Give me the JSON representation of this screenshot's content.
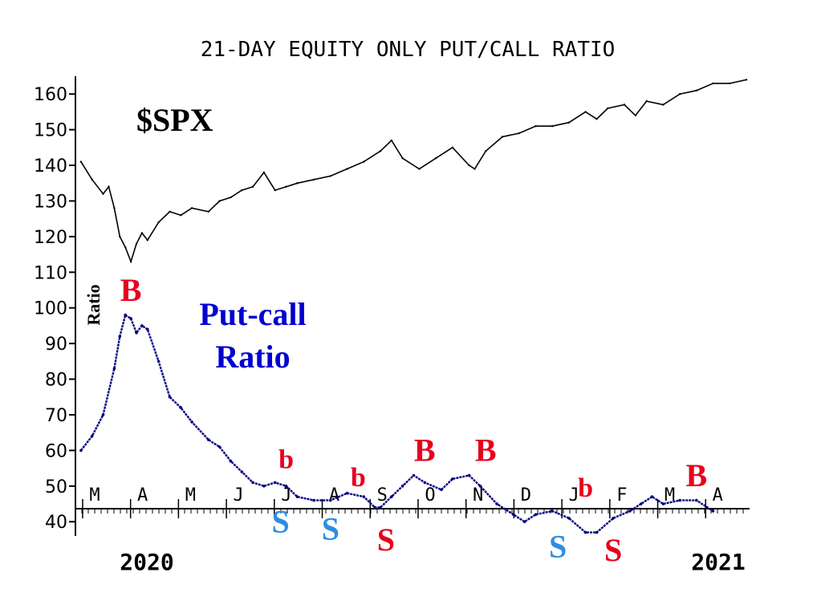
{
  "chart_data": {
    "type": "line",
    "title": "21-DAY EQUITY ONLY PUT/CALL RATIO",
    "y_ticks": [
      40,
      50,
      60,
      70,
      80,
      90,
      100,
      110,
      120,
      130,
      140,
      150,
      160
    ],
    "ylim": [
      36,
      165
    ],
    "ylabel": "Ratio",
    "x_months": [
      "M",
      "A",
      "M",
      "J",
      "J",
      "A",
      "S",
      "O",
      "N",
      "D",
      "J",
      "F",
      "M",
      "A"
    ],
    "x_range": [
      2020.12,
      2021.33
    ],
    "year_labels": [
      "2020",
      "2021"
    ],
    "series": [
      {
        "name": "$SPX",
        "color": "#000000",
        "points": [
          [
            2020.13,
            141
          ],
          [
            2020.15,
            136
          ],
          [
            2020.17,
            132
          ],
          [
            2020.18,
            134
          ],
          [
            2020.19,
            128
          ],
          [
            2020.2,
            120
          ],
          [
            2020.21,
            117
          ],
          [
            2020.22,
            113
          ],
          [
            2020.23,
            118
          ],
          [
            2020.24,
            121
          ],
          [
            2020.25,
            119
          ],
          [
            2020.27,
            124
          ],
          [
            2020.29,
            127
          ],
          [
            2020.31,
            126
          ],
          [
            2020.33,
            128
          ],
          [
            2020.36,
            127
          ],
          [
            2020.38,
            130
          ],
          [
            2020.4,
            131
          ],
          [
            2020.42,
            133
          ],
          [
            2020.44,
            134
          ],
          [
            2020.46,
            138
          ],
          [
            2020.48,
            133
          ],
          [
            2020.5,
            134
          ],
          [
            2020.52,
            135
          ],
          [
            2020.55,
            136
          ],
          [
            2020.58,
            137
          ],
          [
            2020.61,
            139
          ],
          [
            2020.64,
            141
          ],
          [
            2020.67,
            144
          ],
          [
            2020.69,
            147
          ],
          [
            2020.71,
            142
          ],
          [
            2020.74,
            139
          ],
          [
            2020.77,
            142
          ],
          [
            2020.8,
            145
          ],
          [
            2020.83,
            140
          ],
          [
            2020.84,
            139
          ],
          [
            2020.86,
            144
          ],
          [
            2020.89,
            148
          ],
          [
            2020.92,
            149
          ],
          [
            2020.95,
            151
          ],
          [
            2020.98,
            151
          ],
          [
            2021.01,
            152
          ],
          [
            2021.04,
            155
          ],
          [
            2021.06,
            153
          ],
          [
            2021.08,
            156
          ],
          [
            2021.11,
            157
          ],
          [
            2021.13,
            154
          ],
          [
            2021.15,
            158
          ],
          [
            2021.18,
            157
          ],
          [
            2021.21,
            160
          ],
          [
            2021.24,
            161
          ],
          [
            2021.27,
            163
          ],
          [
            2021.3,
            163
          ],
          [
            2021.33,
            164
          ]
        ]
      },
      {
        "name": "Put-call Ratio",
        "color": "#000080",
        "points": [
          [
            2020.13,
            60
          ],
          [
            2020.15,
            64
          ],
          [
            2020.17,
            70
          ],
          [
            2020.19,
            83
          ],
          [
            2020.2,
            92
          ],
          [
            2020.21,
            98
          ],
          [
            2020.22,
            97
          ],
          [
            2020.23,
            93
          ],
          [
            2020.24,
            95
          ],
          [
            2020.25,
            94
          ],
          [
            2020.27,
            85
          ],
          [
            2020.29,
            75
          ],
          [
            2020.31,
            72
          ],
          [
            2020.33,
            68
          ],
          [
            2020.36,
            63
          ],
          [
            2020.38,
            61
          ],
          [
            2020.4,
            57
          ],
          [
            2020.42,
            54
          ],
          [
            2020.44,
            51
          ],
          [
            2020.46,
            50
          ],
          [
            2020.48,
            51
          ],
          [
            2020.5,
            50
          ],
          [
            2020.52,
            47
          ],
          [
            2020.55,
            46
          ],
          [
            2020.58,
            46
          ],
          [
            2020.61,
            48
          ],
          [
            2020.64,
            47
          ],
          [
            2020.66,
            44
          ],
          [
            2020.67,
            44
          ],
          [
            2020.69,
            47
          ],
          [
            2020.71,
            50
          ],
          [
            2020.73,
            53
          ],
          [
            2020.75,
            51
          ],
          [
            2020.78,
            49
          ],
          [
            2020.8,
            52
          ],
          [
            2020.83,
            53
          ],
          [
            2020.85,
            50
          ],
          [
            2020.88,
            45
          ],
          [
            2020.91,
            42
          ],
          [
            2020.93,
            40
          ],
          [
            2020.95,
            42
          ],
          [
            2020.98,
            43
          ],
          [
            2021.01,
            41
          ],
          [
            2021.04,
            37
          ],
          [
            2021.06,
            37
          ],
          [
            2021.09,
            41
          ],
          [
            2021.12,
            43
          ],
          [
            2021.14,
            45
          ],
          [
            2021.16,
            47
          ],
          [
            2021.18,
            45
          ],
          [
            2021.21,
            46
          ],
          [
            2021.24,
            46
          ],
          [
            2021.27,
            43
          ]
        ]
      }
    ],
    "annotations": [
      {
        "text": "B",
        "color": "#e8001c",
        "x": 2020.22,
        "y": 102,
        "size": "big"
      },
      {
        "text": "b",
        "color": "#e8001c",
        "x": 2020.5,
        "y": 55,
        "size": "small"
      },
      {
        "text": "b",
        "color": "#e8001c",
        "x": 2020.63,
        "y": 50,
        "size": "small"
      },
      {
        "text": "B",
        "color": "#e8001c",
        "x": 2020.75,
        "y": 57,
        "size": "big"
      },
      {
        "text": "B",
        "color": "#e8001c",
        "x": 2020.86,
        "y": 57,
        "size": "big"
      },
      {
        "text": "b",
        "color": "#e8001c",
        "x": 2021.04,
        "y": 47,
        "size": "small"
      },
      {
        "text": "B",
        "color": "#e8001c",
        "x": 2021.24,
        "y": 50,
        "size": "big"
      },
      {
        "text": "S",
        "color": "#2e8ee0",
        "x": 2020.49,
        "y": 37,
        "size": "big"
      },
      {
        "text": "S",
        "color": "#2e8ee0",
        "x": 2020.58,
        "y": 35,
        "size": "big"
      },
      {
        "text": "S",
        "color": "#e8001c",
        "x": 2020.68,
        "y": 32,
        "size": "big"
      },
      {
        "text": "S",
        "color": "#2e8ee0",
        "x": 2020.99,
        "y": 30,
        "size": "big"
      },
      {
        "text": "S",
        "color": "#e8001c",
        "x": 2021.09,
        "y": 29,
        "size": "big"
      }
    ]
  },
  "labels": {
    "spx": "$SPX",
    "pcr_line1": "Put-call",
    "pcr_line2": "Ratio"
  },
  "colors": {
    "spx_label": "#000000",
    "pcr_label": "#0000d0"
  }
}
